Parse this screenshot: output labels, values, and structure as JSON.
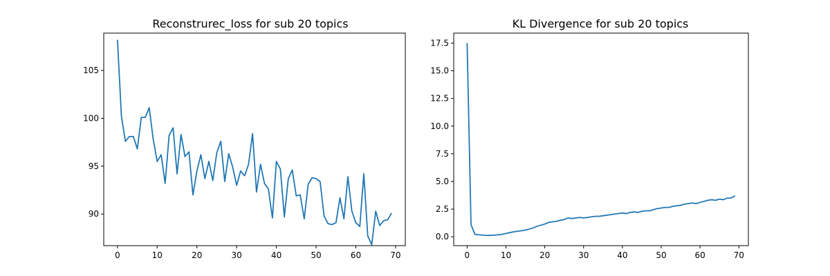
{
  "chart_data": [
    {
      "type": "line",
      "title": "Reconstrurec_loss for sub 20 topics",
      "xlabel": "",
      "ylabel": "",
      "xlim": [
        -3.45,
        72.45
      ],
      "ylim": [
        86.7,
        108.9
      ],
      "xticks": [
        0,
        10,
        20,
        30,
        40,
        50,
        60,
        70
      ],
      "yticks": [
        90,
        95,
        100,
        105
      ],
      "grid": false,
      "series": [
        {
          "color": "#1f77b4",
          "x": [
            0,
            1,
            2,
            3,
            4,
            5,
            6,
            7,
            8,
            9,
            10,
            11,
            12,
            13,
            14,
            15,
            16,
            17,
            18,
            19,
            20,
            21,
            22,
            23,
            24,
            25,
            26,
            27,
            28,
            29,
            30,
            31,
            32,
            33,
            34,
            35,
            36,
            37,
            38,
            39,
            40,
            41,
            42,
            43,
            44,
            45,
            46,
            47,
            48,
            49,
            50,
            51,
            52,
            53,
            54,
            55,
            56,
            57,
            58,
            59,
            60,
            61,
            62,
            63,
            64,
            65,
            66,
            67,
            68,
            69
          ],
          "values": [
            108.2,
            100.2,
            97.6,
            98.1,
            98.1,
            96.8,
            100.1,
            100.1,
            101.1,
            97.8,
            95.5,
            96.2,
            93.2,
            98.2,
            99.0,
            94.2,
            98.3,
            96.0,
            96.5,
            92.0,
            94.5,
            96.2,
            93.7,
            95.5,
            93.5,
            96.4,
            97.6,
            93.4,
            96.3,
            94.9,
            93.0,
            94.5,
            94.0,
            95.2,
            98.4,
            92.3,
            95.2,
            93.2,
            92.6,
            89.6,
            95.5,
            94.7,
            89.7,
            93.7,
            94.6,
            91.9,
            92.0,
            89.5,
            93.1,
            93.8,
            93.7,
            93.4,
            89.8,
            89.0,
            88.9,
            89.1,
            91.7,
            89.5,
            93.9,
            90.3,
            89.1,
            88.7,
            94.2,
            87.7,
            86.8,
            90.3,
            88.8,
            89.3,
            89.4,
            90.1
          ]
        }
      ]
    },
    {
      "type": "line",
      "title": "KL Divergence for sub 20 topics",
      "xlabel": "",
      "ylabel": "",
      "xlim": [
        -3.45,
        72.45
      ],
      "ylim": [
        -0.8,
        18.4
      ],
      "xticks": [
        0,
        10,
        20,
        30,
        40,
        50,
        60,
        70
      ],
      "yticks": [
        0.0,
        2.5,
        5.0,
        7.5,
        10.0,
        12.5,
        15.0,
        17.5
      ],
      "ytick_labels": [
        "0.0",
        "2.5",
        "5.0",
        "7.5",
        "10.0",
        "12.5",
        "15.0",
        "17.5"
      ],
      "grid": false,
      "series": [
        {
          "color": "#1f77b4",
          "x": [
            0,
            1,
            2,
            3,
            4,
            5,
            6,
            7,
            8,
            9,
            10,
            11,
            12,
            13,
            14,
            15,
            16,
            17,
            18,
            19,
            20,
            21,
            22,
            23,
            24,
            25,
            26,
            27,
            28,
            29,
            30,
            31,
            32,
            33,
            34,
            35,
            36,
            37,
            38,
            39,
            40,
            41,
            42,
            43,
            44,
            45,
            46,
            47,
            48,
            49,
            50,
            51,
            52,
            53,
            54,
            55,
            56,
            57,
            58,
            59,
            60,
            61,
            62,
            63,
            64,
            65,
            66,
            67,
            68,
            69
          ],
          "values": [
            17.5,
            1.1,
            0.22,
            0.18,
            0.15,
            0.12,
            0.13,
            0.15,
            0.18,
            0.22,
            0.3,
            0.38,
            0.45,
            0.5,
            0.55,
            0.6,
            0.7,
            0.8,
            0.95,
            1.05,
            1.15,
            1.3,
            1.35,
            1.4,
            1.5,
            1.55,
            1.7,
            1.65,
            1.7,
            1.75,
            1.7,
            1.75,
            1.8,
            1.85,
            1.85,
            1.9,
            1.95,
            2.0,
            2.05,
            2.1,
            2.15,
            2.1,
            2.2,
            2.25,
            2.2,
            2.3,
            2.35,
            2.35,
            2.45,
            2.55,
            2.6,
            2.65,
            2.65,
            2.75,
            2.8,
            2.85,
            2.95,
            3.0,
            3.05,
            3.0,
            3.1,
            3.2,
            3.3,
            3.35,
            3.3,
            3.4,
            3.35,
            3.5,
            3.5,
            3.7
          ]
        }
      ]
    }
  ]
}
